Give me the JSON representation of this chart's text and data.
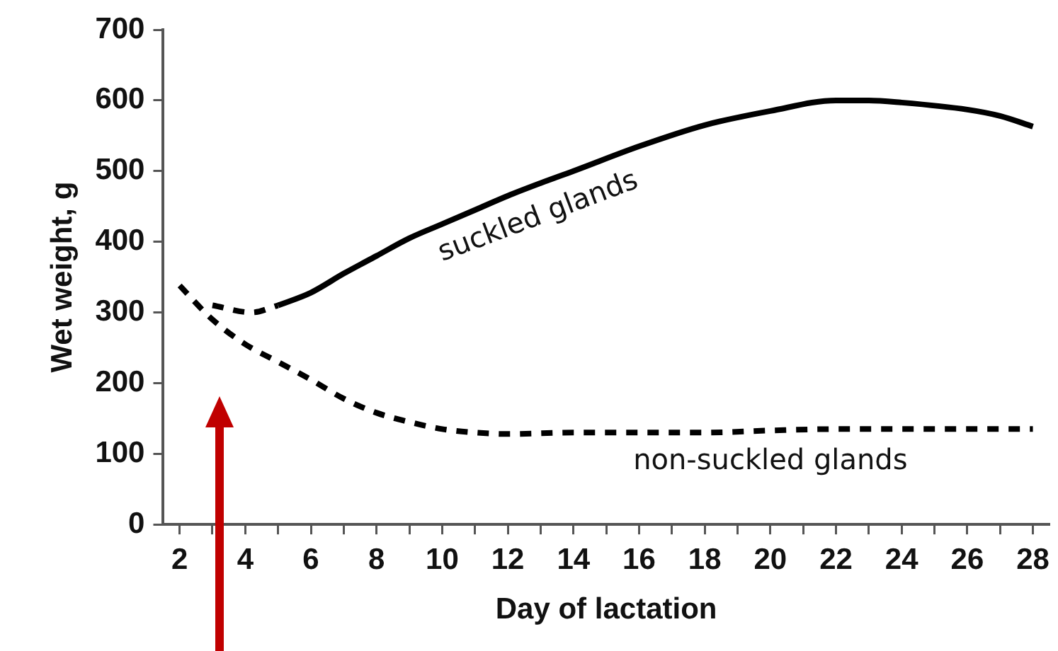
{
  "chart_data": {
    "type": "line",
    "xlabel": "Day of lactation",
    "ylabel": "Wet weight, g",
    "xlim": [
      1.5,
      28.5
    ],
    "ylim": [
      0,
      700
    ],
    "xticks": [
      2,
      {
        "value": 3,
        "label": null
      },
      4,
      {
        "value": 5,
        "label": null
      },
      6,
      {
        "value": 7,
        "label": null
      },
      8,
      {
        "value": 9,
        "label": null
      },
      10,
      {
        "value": 11,
        "label": null
      },
      12,
      {
        "value": 13,
        "label": null
      },
      14,
      {
        "value": 15,
        "label": null
      },
      16,
      {
        "value": 17,
        "label": null
      },
      18,
      {
        "value": 19,
        "label": null
      },
      20,
      {
        "value": 21,
        "label": null
      },
      22,
      {
        "value": 23,
        "label": null
      },
      24,
      {
        "value": 25,
        "label": null
      },
      26,
      {
        "value": 27,
        "label": null
      },
      28
    ],
    "yticks": [
      0,
      100,
      200,
      300,
      400,
      500,
      600,
      700
    ],
    "grid": false,
    "legend": false,
    "marker": "none",
    "series": [
      {
        "name": "suckled glands",
        "color": "#000000",
        "line_style": "solid",
        "x": [
          5,
          6,
          7,
          8,
          9,
          10,
          11,
          12,
          13,
          14,
          16,
          18,
          20,
          22,
          23,
          24,
          26,
          27,
          28
        ],
        "values": [
          310,
          328,
          355,
          380,
          405,
          425,
          445,
          465,
          483,
          500,
          535,
          565,
          585,
          600,
          600,
          597,
          587,
          578,
          563
        ]
      },
      {
        "color": "#000000",
        "line_style": "dashed",
        "x": [
          3,
          4.2,
          5
        ],
        "values": [
          310,
          300,
          310
        ]
      },
      {
        "name": "non-suckled glands",
        "color": "#000000",
        "line_style": "dashed",
        "x": [
          2,
          3,
          4,
          5,
          6,
          7,
          8,
          9,
          10,
          11,
          12,
          14,
          16,
          18,
          20,
          22,
          24,
          26,
          28
        ],
        "values": [
          338,
          290,
          255,
          230,
          205,
          178,
          158,
          145,
          135,
          130,
          128,
          130,
          130,
          130,
          133,
          135,
          135,
          135,
          135
        ]
      }
    ]
  }
}
